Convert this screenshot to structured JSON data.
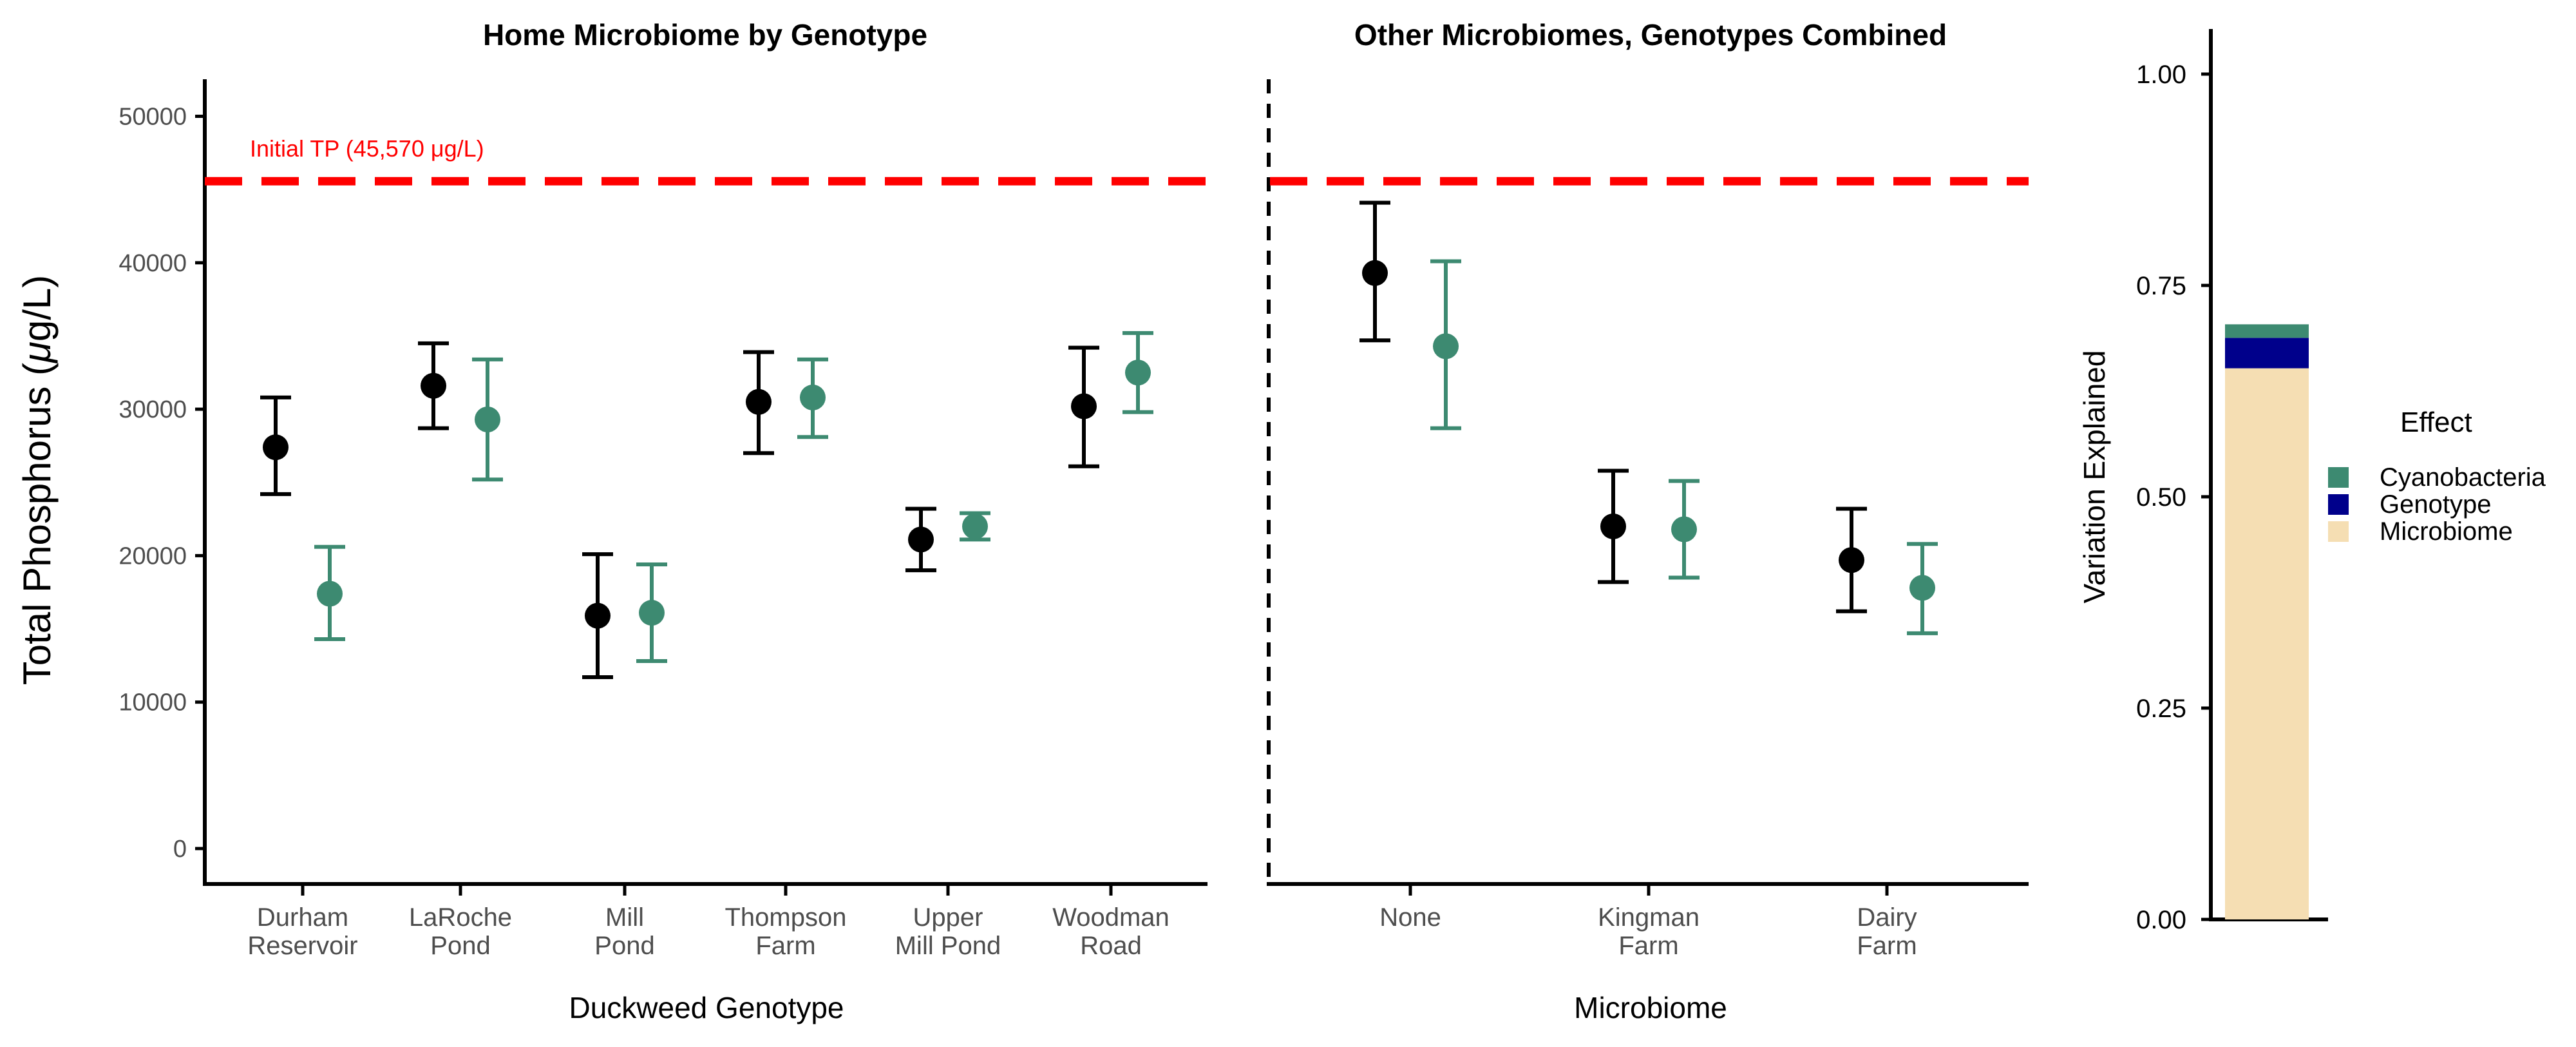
{
  "figure": {
    "y_axis_label": "Total Phosphorus (μg/L)",
    "reference_label": "Initial TP (45,570 μg/L)"
  },
  "colors": {
    "no_cyanobacteria": "#000000",
    "cyanobacteria": "#3d8a71",
    "reference_line": "#ff0000",
    "microbiome": "#f5deb3",
    "genotype": "#00008b"
  },
  "chart_data": [
    {
      "type": "scatter",
      "title": "Home Microbiome by Genotype",
      "xlabel": "Duckweed Genotype",
      "ylabel": "Total Phosphorus (μg/L)",
      "ylim": [
        -2500,
        52500
      ],
      "yticks": [
        0,
        10000,
        20000,
        30000,
        40000,
        50000
      ],
      "reference_line": 45570,
      "categories": [
        "Durham\nReservoir",
        "LaRoche\nPond",
        "Mill\nPond",
        "Thompson\nFarm",
        "Upper\nMill Pond",
        "Woodman\nRoad"
      ],
      "series": [
        {
          "color": "#000000",
          "points": [
            {
              "mean": 27400,
              "low": 24200,
              "high": 30800
            },
            {
              "mean": 31600,
              "low": 28700,
              "high": 34500
            },
            {
              "mean": 15900,
              "low": 11700,
              "high": 20100
            },
            {
              "mean": 30500,
              "low": 27000,
              "high": 33900
            },
            {
              "mean": 21100,
              "low": 19000,
              "high": 23200
            },
            {
              "mean": 30200,
              "low": 26100,
              "high": 34200
            }
          ]
        },
        {
          "color": "#3d8a71",
          "points": [
            {
              "mean": 17400,
              "low": 14300,
              "high": 20600
            },
            {
              "mean": 29300,
              "low": 25200,
              "high": 33400
            },
            {
              "mean": 16100,
              "low": 12800,
              "high": 19400
            },
            {
              "mean": 30800,
              "low": 28100,
              "high": 33400
            },
            {
              "mean": 22000,
              "low": 21100,
              "high": 22900
            },
            {
              "mean": 32500,
              "low": 29800,
              "high": 35200
            }
          ]
        }
      ]
    },
    {
      "type": "scatter",
      "title": "Other Microbiomes, Genotypes Combined",
      "xlabel": "Microbiome",
      "ylim": [
        -2500,
        52500
      ],
      "reference_line": 45570,
      "categories": [
        "None",
        "Kingman\nFarm",
        "Dairy\nFarm"
      ],
      "series": [
        {
          "color": "#000000",
          "points": [
            {
              "mean": 39300,
              "low": 34700,
              "high": 44100
            },
            {
              "mean": 22000,
              "low": 18200,
              "high": 25800
            },
            {
              "mean": 19700,
              "low": 16200,
              "high": 23200
            }
          ]
        },
        {
          "color": "#3d8a71",
          "points": [
            {
              "mean": 34300,
              "low": 28700,
              "high": 40100
            },
            {
              "mean": 21800,
              "low": 18500,
              "high": 25100
            },
            {
              "mean": 17800,
              "low": 14700,
              "high": 20800
            }
          ]
        }
      ]
    },
    {
      "type": "bar",
      "stacked": true,
      "ylabel": "Variation Explained",
      "ylim": [
        0,
        1.05
      ],
      "yticks": [
        "0.00",
        "0.25",
        "0.50",
        "0.75",
        "1.00"
      ],
      "legend": {
        "title": "Effect",
        "placement": "right"
      },
      "series": [
        {
          "name": "Microbiome",
          "value": 0.652,
          "color": "#f5deb3"
        },
        {
          "name": "Genotype",
          "value": 0.036,
          "color": "#00008b"
        },
        {
          "name": "Cyanobacteria",
          "value": 0.016,
          "color": "#3d8a71"
        }
      ],
      "legend_order": [
        "Cyanobacteria",
        "Genotype",
        "Microbiome"
      ]
    }
  ]
}
